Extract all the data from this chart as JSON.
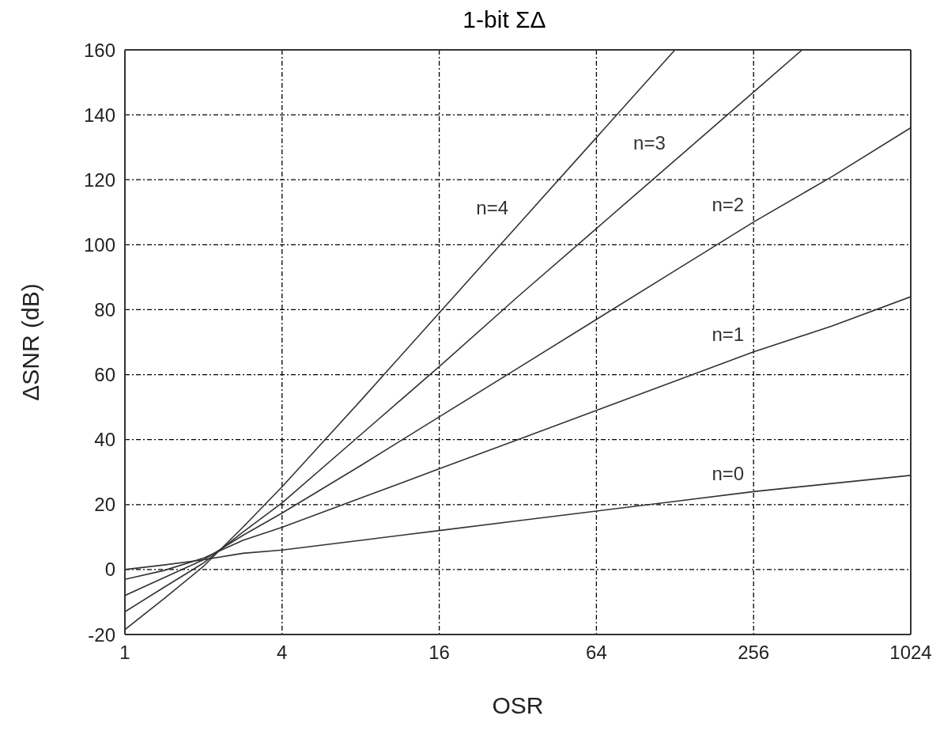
{
  "chart_data": {
    "type": "line",
    "title": "1-bit ΣΔ",
    "xlabel": "OSR",
    "ylabel": "ΔSNR (dB)",
    "log": "x",
    "grid": true,
    "line_style": "solid",
    "marker": "none",
    "xlim": [
      1,
      1024
    ],
    "xticks": [
      1,
      4,
      16,
      64,
      256,
      1024
    ],
    "ylim": [
      -20,
      160
    ],
    "yticks": [
      -20,
      0,
      20,
      40,
      60,
      80,
      100,
      120,
      140,
      160
    ],
    "series": [
      {
        "name": "n=0",
        "color": "#333333",
        "x": [
          1,
          1.41,
          2,
          2.83,
          4,
          8,
          16,
          32,
          64,
          128,
          256,
          512,
          1024
        ],
        "values": [
          0,
          1.4,
          3,
          5,
          6,
          9,
          12,
          15,
          18,
          21,
          24,
          26.5,
          29
        ]
      },
      {
        "name": "n=1",
        "color": "#333333",
        "x": [
          1,
          1.41,
          2,
          2.83,
          4,
          8,
          16,
          32,
          64,
          128,
          256,
          512,
          1024
        ],
        "values": [
          -3,
          -0.3,
          3.5,
          9,
          13,
          22,
          31,
          40,
          49,
          58,
          67,
          75,
          84
        ]
      },
      {
        "name": "n=2",
        "color": "#333333",
        "x": [
          1,
          1.41,
          2,
          2.83,
          4,
          8,
          16,
          32,
          64,
          128,
          256,
          512,
          1024
        ],
        "values": [
          -8,
          -2.5,
          3,
          10.5,
          17.4,
          32,
          47,
          62,
          77,
          92,
          107,
          121,
          136
        ]
      },
      {
        "name": "n=3",
        "color": "#333333",
        "x": [
          1,
          1.41,
          2,
          2.83,
          4,
          8,
          16,
          32,
          64,
          128,
          256,
          393
        ],
        "values": [
          -13,
          -5.5,
          2,
          11.5,
          20.5,
          41.5,
          62.5,
          84,
          105,
          126,
          147,
          160
        ]
      },
      {
        "name": "n=4",
        "color": "#333333",
        "x": [
          1,
          1.41,
          2,
          2.83,
          4,
          8,
          16,
          32,
          64,
          128
        ],
        "values": [
          -18.5,
          -9,
          1,
          13,
          25.5,
          52,
          79,
          106,
          133,
          160
        ]
      }
    ]
  }
}
